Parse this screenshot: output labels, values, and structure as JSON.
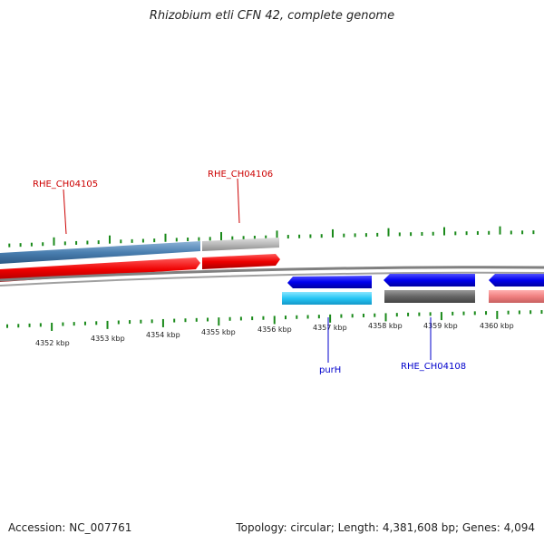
{
  "title": "Rhizobium etli CFN 42, complete genome",
  "footer": {
    "accession": "Accession: NC_007761",
    "summary": "Topology: circular; Length: 4,381,608 bp; Genes: 4,094"
  },
  "colors": {
    "tick": "#1a8a1a",
    "backbone": "#808080",
    "label_forward": "#cc0000",
    "label_reverse": "#0000cc"
  },
  "kbp_labels": [
    "4352 kbp",
    "4353 kbp",
    "4354 kbp",
    "4355 kbp",
    "4356 kbp",
    "4357 kbp",
    "4358 kbp",
    "4359 kbp",
    "4360 kbp"
  ],
  "gene_labels": {
    "rhe_ch04105": "RHE_CH04105",
    "rhe_ch04106": "RHE_CH04106",
    "purH": "purH",
    "rhe_ch04108": "RHE_CH04108"
  }
}
